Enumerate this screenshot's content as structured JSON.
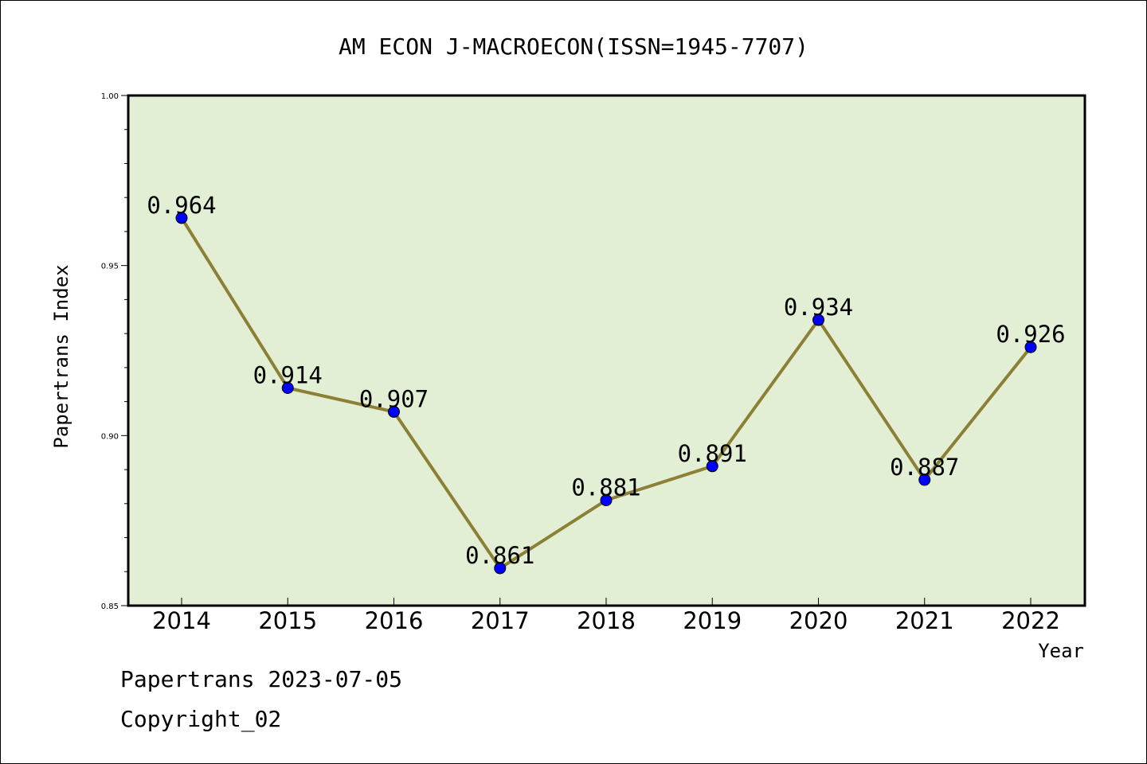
{
  "chart_data": {
    "type": "line",
    "title": "AM ECON J-MACROECON(ISSN=1945-7707)",
    "xlabel": "Year",
    "ylabel": "Papertrans Index",
    "categories": [
      "2014",
      "2015",
      "2016",
      "2017",
      "2018",
      "2019",
      "2020",
      "2021",
      "2022"
    ],
    "values": [
      0.964,
      0.914,
      0.907,
      0.861,
      0.881,
      0.891,
      0.934,
      0.887,
      0.926
    ],
    "data_labels": [
      "0.964",
      "0.914",
      "0.907",
      "0.861",
      "0.881",
      "0.891",
      "0.934",
      "0.887",
      "0.926"
    ],
    "ylim": [
      0.85,
      1.0
    ],
    "yticks": [
      "0.85",
      "0.90",
      "0.95",
      "1.00"
    ],
    "ytick_values": [
      0.85,
      0.9,
      0.95,
      1.0
    ],
    "grid": false,
    "legend": "none",
    "colors": {
      "plot_background": "#e2efd4",
      "line": "#8b8035",
      "marker": "#0000ff",
      "axis": "#000000"
    }
  },
  "footer": {
    "line1": "Papertrans 2023-07-05",
    "line2": "Copyright_02"
  }
}
